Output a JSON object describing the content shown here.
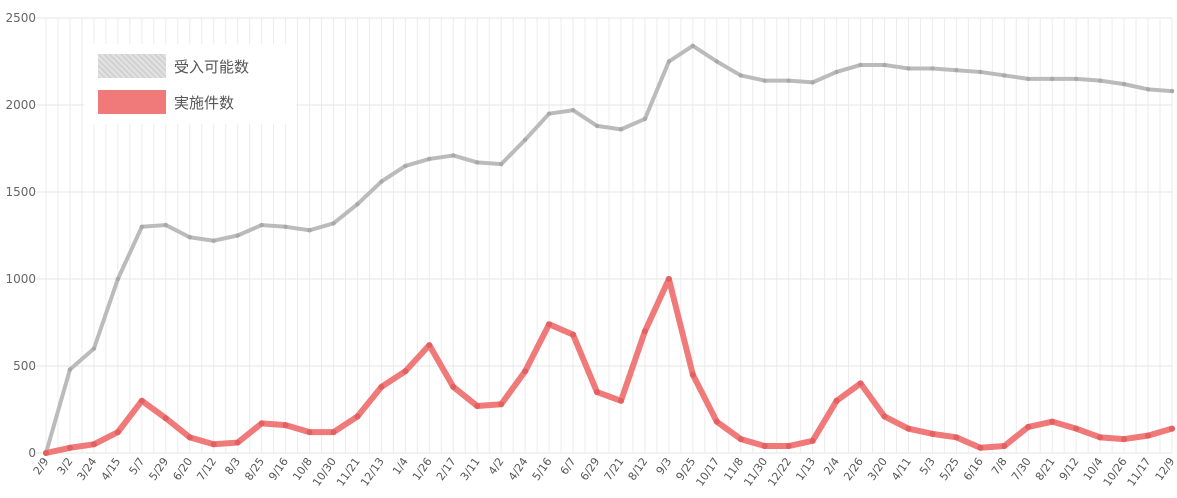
{
  "chart_data": {
    "type": "line",
    "categories": [
      "2/9",
      "3/2",
      "3/24",
      "4/15",
      "5/7",
      "5/29",
      "6/20",
      "7/12",
      "8/3",
      "8/25",
      "9/16",
      "10/8",
      "10/30",
      "11/21",
      "12/13",
      "1/4",
      "1/26",
      "2/17",
      "3/11",
      "4/2",
      "4/24",
      "5/16",
      "6/7",
      "6/29",
      "7/21",
      "8/12",
      "9/3",
      "9/25",
      "10/17",
      "11/8",
      "11/30",
      "12/22",
      "1/13",
      "2/4",
      "2/26",
      "3/20",
      "4/11",
      "5/3",
      "5/25",
      "6/16",
      "7/8",
      "7/30",
      "8/21",
      "9/12",
      "10/4",
      "10/26",
      "11/17",
      "12/9"
    ],
    "ylim": [
      0,
      2500
    ],
    "yticks": [
      0,
      500,
      1000,
      1500,
      2000,
      2500
    ],
    "grid": true,
    "legend_position": "top-left",
    "series": [
      {
        "name": "受入可能数",
        "color": "#bbbbbb",
        "values": [
          0,
          480,
          600,
          1000,
          1300,
          1310,
          1240,
          1220,
          1250,
          1310,
          1300,
          1280,
          1320,
          1430,
          1560,
          1650,
          1690,
          1710,
          1670,
          1660,
          1800,
          1950,
          1970,
          1880,
          1860,
          1920,
          2250,
          2340,
          2250,
          2170,
          2140,
          2140,
          2130,
          2190,
          2230,
          2230,
          2210,
          2210,
          2200,
          2190,
          2170,
          2150,
          2150,
          2150,
          2140,
          2120,
          2090,
          2080
        ]
      },
      {
        "name": "実施件数",
        "color": "#f07a7a",
        "values": [
          0,
          30,
          50,
          120,
          300,
          200,
          90,
          50,
          60,
          170,
          160,
          120,
          120,
          210,
          380,
          470,
          620,
          380,
          270,
          280,
          470,
          740,
          680,
          350,
          300,
          700,
          1000,
          450,
          180,
          80,
          40,
          40,
          70,
          300,
          400,
          210,
          140,
          110,
          90,
          30,
          40,
          150,
          180,
          140,
          90,
          80,
          100,
          140
        ]
      }
    ]
  }
}
